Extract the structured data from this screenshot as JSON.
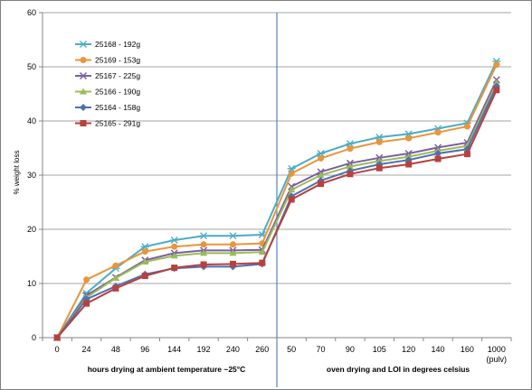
{
  "chart_data": {
    "type": "line",
    "ylabel": "% weight loss",
    "ylim": [
      0,
      60
    ],
    "yticks": [
      0,
      10,
      20,
      30,
      40,
      50,
      60
    ],
    "categories": [
      "0",
      "24",
      "48",
      "96",
      "144",
      "192",
      "240",
      "260",
      "50",
      "70",
      "90",
      "105",
      "120",
      "140",
      "160",
      "1000"
    ],
    "category_sublabel": {
      "index": 15,
      "text": "(pulv)"
    },
    "sections": [
      {
        "label": "hours drying at ambient temperature ~25°C"
      },
      {
        "label": "oven drying and LOI in degrees celsius"
      }
    ],
    "divider_after_index": 7,
    "legend_position": "top-left",
    "grid": "horizontal",
    "series": [
      {
        "name": "25168 - 192g",
        "color": "#4bacc6",
        "marker": "asterisk",
        "values": [
          0,
          8.2,
          12.8,
          16.8,
          18.0,
          18.8,
          18.8,
          19.0,
          31.2,
          34.0,
          35.8,
          37.0,
          37.6,
          38.6,
          39.6,
          51.0
        ]
      },
      {
        "name": "25169 - 153g",
        "color": "#e9953a",
        "marker": "circle",
        "values": [
          0,
          10.7,
          13.3,
          15.9,
          16.8,
          17.2,
          17.2,
          17.4,
          30.3,
          33.1,
          34.9,
          36.1,
          36.8,
          37.9,
          39.0,
          50.4
        ]
      },
      {
        "name": "25167 - 225g",
        "color": "#7b5f9e",
        "marker": "x",
        "values": [
          0,
          7.8,
          11.1,
          14.3,
          15.6,
          16.1,
          16.1,
          16.2,
          27.9,
          30.6,
          32.2,
          33.2,
          34.0,
          35.1,
          36.0,
          47.6
        ]
      },
      {
        "name": "25166 - 190g",
        "color": "#9bbb59",
        "marker": "triangle",
        "values": [
          0,
          7.4,
          11.0,
          14.0,
          15.1,
          15.6,
          15.6,
          15.8,
          27.3,
          30.0,
          31.6,
          32.6,
          33.4,
          34.5,
          35.4,
          47.0
        ]
      },
      {
        "name": "25164 - 158g",
        "color": "#4f6fb2",
        "marker": "diamond",
        "values": [
          0,
          7.1,
          9.5,
          11.7,
          12.8,
          13.1,
          13.1,
          13.6,
          26.1,
          29.0,
          30.8,
          32.0,
          32.8,
          34.0,
          34.8,
          46.4
        ]
      },
      {
        "name": "25165 - 291g",
        "color": "#b6413e",
        "marker": "square",
        "values": [
          0,
          6.3,
          9.1,
          11.4,
          12.9,
          13.5,
          13.6,
          13.8,
          25.5,
          28.4,
          30.2,
          31.3,
          32.0,
          33.0,
          33.9,
          45.7
        ]
      }
    ]
  }
}
